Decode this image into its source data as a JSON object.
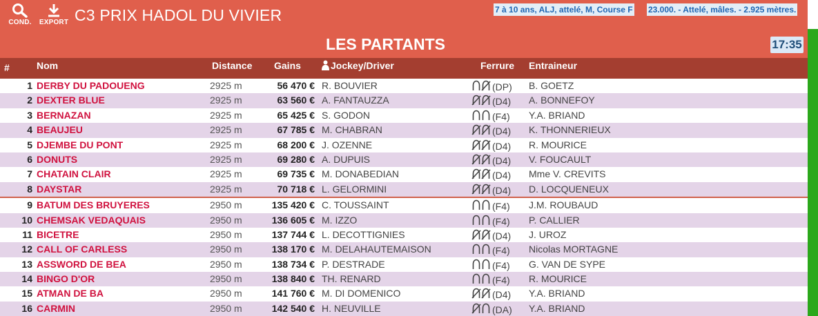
{
  "header": {
    "cond_label": "COND.",
    "export_label": "EXPORT",
    "race_title": "C3 PRIX HADOL DU VIVIER",
    "conditions": "7 à 10 ans, ALJ, attelé, M, Course F",
    "prize_info": "23.000. - Attelé, mâles. - 2.925 mètres.",
    "section_title": "LES PARTANTS",
    "clock": "17:35",
    "icons": {
      "cond": "search-icon",
      "export": "download-icon",
      "jockey": "jockey-icon"
    }
  },
  "columns": {
    "num": "#",
    "name": "Nom",
    "distance": "Distance",
    "gains": "Gains",
    "jockey": "Jockey/Driver",
    "ferrure": "Ferrure",
    "trainer": "Entraineur"
  },
  "colors": {
    "header_bg": "#e05f4c",
    "column_header_bg": "#a43e30",
    "row_alt_bg": "#e4d4e8",
    "horse_name": "#d0123f",
    "scrollbar": "#2ba81b",
    "info_text": "#1f66b3"
  },
  "runners": [
    {
      "num": "1",
      "name": "DERBY DU PADOUENG",
      "distance": "2925 m",
      "gains": "56 470 €",
      "jockey": "R. BOUVIER",
      "shoes": [
        "shod",
        "unshod"
      ],
      "ferrure_code": "(DP)",
      "trainer": "B. GOETZ"
    },
    {
      "num": "2",
      "name": "DEXTER BLUE",
      "distance": "2925 m",
      "gains": "63 560 €",
      "jockey": "A. FANTAUZZA",
      "shoes": [
        "unshod",
        "unshod"
      ],
      "ferrure_code": "(D4)",
      "trainer": "A. BONNEFOY"
    },
    {
      "num": "3",
      "name": "BERNAZAN",
      "distance": "2925 m",
      "gains": "65 425 €",
      "jockey": "S. GODON",
      "shoes": [
        "shod",
        "shod"
      ],
      "ferrure_code": "(F4)",
      "trainer": "Y.A. BRIAND"
    },
    {
      "num": "4",
      "name": "BEAUJEU",
      "distance": "2925 m",
      "gains": "67 785 €",
      "jockey": "M. CHABRAN",
      "shoes": [
        "unshod",
        "unshod"
      ],
      "ferrure_code": "(D4)",
      "trainer": "K. THONNERIEUX"
    },
    {
      "num": "5",
      "name": "DJEMBE DU PONT",
      "distance": "2925 m",
      "gains": "68 200 €",
      "jockey": "J. OZENNE",
      "shoes": [
        "unshod",
        "unshod"
      ],
      "ferrure_code": "(D4)",
      "trainer": "R. MOURICE"
    },
    {
      "num": "6",
      "name": "DONUTS",
      "distance": "2925 m",
      "gains": "69 280 €",
      "jockey": "A. DUPUIS",
      "shoes": [
        "unshod",
        "unshod"
      ],
      "ferrure_code": "(D4)",
      "trainer": "V. FOUCAULT"
    },
    {
      "num": "7",
      "name": "CHATAIN CLAIR",
      "distance": "2925 m",
      "gains": "69 735 €",
      "jockey": "M. DONABEDIAN",
      "shoes": [
        "unshod",
        "unshod"
      ],
      "ferrure_code": "(D4)",
      "trainer": "Mme V. CREVITS"
    },
    {
      "num": "8",
      "name": "DAYSTAR",
      "distance": "2925 m",
      "gains": "70 718 €",
      "jockey": "L. GELORMINI",
      "shoes": [
        "unshod",
        "unshod"
      ],
      "ferrure_code": "(D4)",
      "trainer": "D. LOCQUENEUX"
    },
    {
      "num": "9",
      "name": "BATUM DES BRUYERES",
      "distance": "2950 m",
      "gains": "135 420 €",
      "jockey": "C. TOUSSAINT",
      "shoes": [
        "shod",
        "shod"
      ],
      "ferrure_code": "(F4)",
      "trainer": "J.M. ROUBAUD"
    },
    {
      "num": "10",
      "name": "CHEMSAK VEDAQUAIS",
      "distance": "2950 m",
      "gains": "136 605 €",
      "jockey": "M. IZZO",
      "shoes": [
        "shod",
        "shod"
      ],
      "ferrure_code": "(F4)",
      "trainer": "P. CALLIER"
    },
    {
      "num": "11",
      "name": "BICETRE",
      "distance": "2950 m",
      "gains": "137 744 €",
      "jockey": "L. DECOTTIGNIES",
      "shoes": [
        "unshod",
        "unshod"
      ],
      "ferrure_code": "(D4)",
      "trainer": "J. UROZ"
    },
    {
      "num": "12",
      "name": "CALL OF CARLESS",
      "distance": "2950 m",
      "gains": "138 170 €",
      "jockey": "M. DELAHAUTEMAISON",
      "shoes": [
        "shod",
        "shod"
      ],
      "ferrure_code": "(F4)",
      "trainer": "Nicolas MORTAGNE"
    },
    {
      "num": "13",
      "name": "ASSWORD DE BEA",
      "distance": "2950 m",
      "gains": "138 734 €",
      "jockey": "P. DESTRADE",
      "shoes": [
        "shod",
        "shod"
      ],
      "ferrure_code": "(F4)",
      "trainer": "G. VAN DE SYPE"
    },
    {
      "num": "14",
      "name": "BINGO D'OR",
      "distance": "2950 m",
      "gains": "138 840 €",
      "jockey": "TH. RENARD",
      "shoes": [
        "shod",
        "shod"
      ],
      "ferrure_code": "(F4)",
      "trainer": "R. MOURICE"
    },
    {
      "num": "15",
      "name": "ATMAN DE BA",
      "distance": "2950 m",
      "gains": "141 760 €",
      "jockey": "M. DI DOMENICO",
      "shoes": [
        "unshod",
        "unshod"
      ],
      "ferrure_code": "(D4)",
      "trainer": "Y.A. BRIAND"
    },
    {
      "num": "16",
      "name": "CARMIN",
      "distance": "2950 m",
      "gains": "142 540 €",
      "jockey": "H. NEUVILLE",
      "shoes": [
        "unshod",
        "shod"
      ],
      "ferrure_code": "(DA)",
      "trainer": "Y.A. BRIAND"
    }
  ]
}
